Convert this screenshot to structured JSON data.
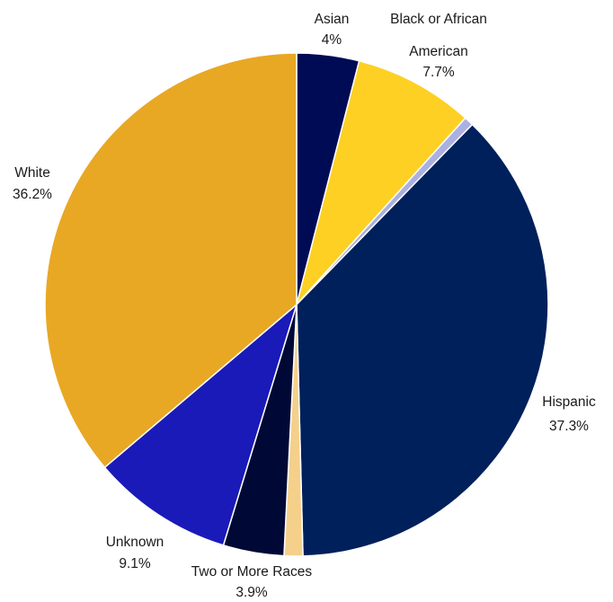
{
  "chart_data": {
    "type": "pie",
    "title": "",
    "slices": [
      {
        "name": "Asian",
        "display": "4%",
        "value": 4.0,
        "color": "#000b55"
      },
      {
        "name": "Black or African American",
        "display": "7.7%",
        "value": 7.7,
        "color": "#fdd023"
      },
      {
        "name": "",
        "display": "",
        "value": 0.6,
        "color": "#aab0e2"
      },
      {
        "name": "Hispanic",
        "display": "37.3%",
        "value": 37.3,
        "color": "#00205b"
      },
      {
        "name": "",
        "display": "",
        "value": 1.2,
        "color": "#f5d08a"
      },
      {
        "name": "Two or More Races",
        "display": "3.9%",
        "value": 3.9,
        "color": "#000835"
      },
      {
        "name": "Unknown",
        "display": "9.1%",
        "value": 9.1,
        "color": "#1a1ab8"
      },
      {
        "name": "White",
        "display": "36.2%",
        "value": 36.2,
        "color": "#e8a824"
      }
    ]
  }
}
